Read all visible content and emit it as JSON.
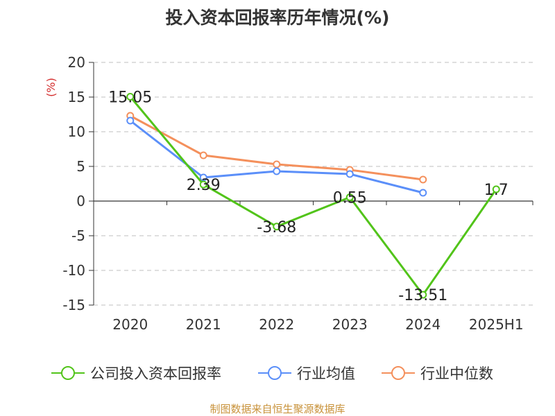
{
  "chart_data": {
    "type": "line",
    "title": "投入资本回报率历年情况(%)",
    "ylabel": "(%)",
    "xlabel": "",
    "categories": [
      "2020",
      "2021",
      "2022",
      "2023",
      "2024",
      "2025H1"
    ],
    "ylim": [
      -15,
      20
    ],
    "yticks": [
      20,
      15,
      10,
      5,
      0,
      -5,
      -10,
      -15
    ],
    "grid": true,
    "legend_position": "bottom",
    "series": [
      {
        "name": "公司投入资本回报率",
        "color": "#52c41a",
        "values": [
          15.05,
          2.39,
          -3.68,
          0.55,
          -13.51,
          1.7
        ],
        "labels": [
          "15.05",
          "2.39",
          "-3.68",
          "0.55",
          "-13.51",
          "1.7"
        ]
      },
      {
        "name": "行业均值",
        "color": "#5b8ff9",
        "values": [
          11.6,
          3.4,
          4.3,
          3.9,
          1.2,
          null
        ]
      },
      {
        "name": "行业中位数",
        "color": "#f4905c",
        "values": [
          12.3,
          6.6,
          5.3,
          4.5,
          3.1,
          null
        ]
      }
    ]
  },
  "footer": {
    "source": "制图数据来自恒生聚源数据库"
  }
}
